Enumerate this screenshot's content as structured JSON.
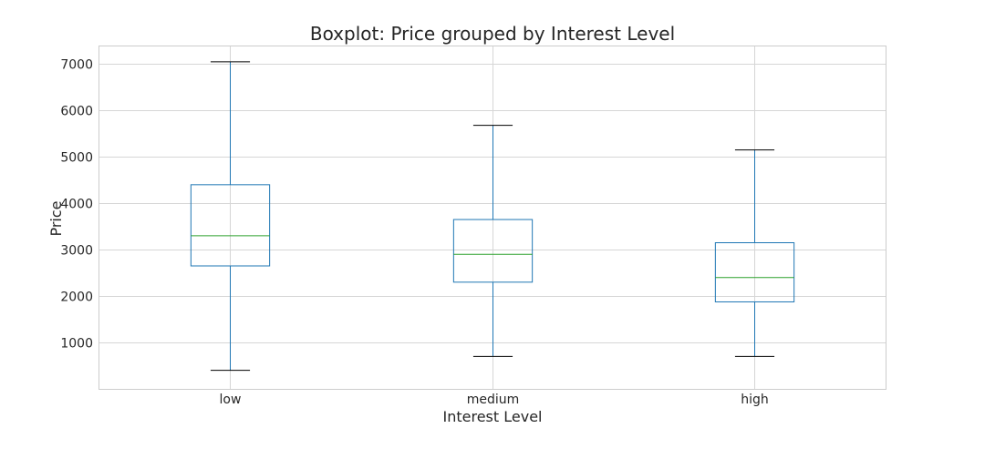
{
  "chart_data": {
    "type": "boxplot",
    "title": "Boxplot: Price grouped by Interest Level",
    "xlabel": "Interest Level",
    "ylabel": "Price",
    "ylim": [
      0,
      7400
    ],
    "yticks": [
      1000,
      2000,
      3000,
      4000,
      5000,
      6000,
      7000
    ],
    "grid": true,
    "categories": [
      "low",
      "medium",
      "high"
    ],
    "boxes": [
      {
        "category": "low",
        "whisker_low": 400,
        "q1": 2650,
        "median": 3300,
        "q3": 4400,
        "whisker_high": 7050
      },
      {
        "category": "medium",
        "whisker_low": 700,
        "q1": 2300,
        "median": 2900,
        "q3": 3650,
        "whisker_high": 5680
      },
      {
        "category": "high",
        "whisker_low": 700,
        "q1": 1875,
        "median": 2400,
        "q3": 3150,
        "whisker_high": 5150
      }
    ],
    "colors": {
      "box": "#1f77b4",
      "whisker": "#1f77b4",
      "median": "#2ca02c",
      "cap": "#000000"
    }
  }
}
